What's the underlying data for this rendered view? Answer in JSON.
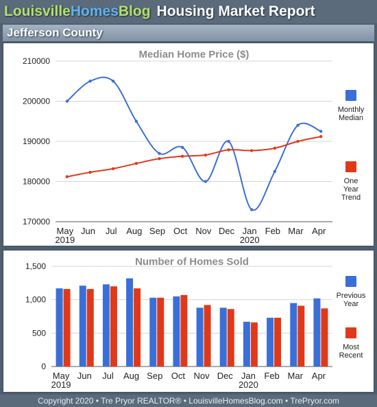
{
  "header": {
    "brand_part1": "Louisville",
    "brand_part2": "Homes",
    "brand_part3": "Blog",
    "title": "Housing Market Report"
  },
  "region": "Jefferson County",
  "colors": {
    "blue": "#3a6fd8",
    "red": "#e0391a"
  },
  "chart_data": [
    {
      "type": "line",
      "title": "Median Home Price ($)",
      "categories": [
        "May",
        "Jun",
        "Jul",
        "Aug",
        "Sep",
        "Oct",
        "Nov",
        "Dec",
        "Jan",
        "Feb",
        "Mar",
        "Apr"
      ],
      "year_labels": [
        "2019",
        "",
        "",
        "",
        "",
        "",
        "",
        "",
        "2020",
        "",
        "",
        ""
      ],
      "yticks": [
        "170000",
        "180000",
        "190000",
        "200000",
        "210000"
      ],
      "ylim": [
        170000,
        210000
      ],
      "grid": true,
      "legend_position": "right",
      "series": [
        {
          "name": "Monthly Median",
          "legend_lines": [
            "Monthly",
            "Median"
          ],
          "color": "#3a6fd8",
          "values": [
            200000,
            205000,
            205000,
            195000,
            187000,
            188500,
            180000,
            190000,
            173000,
            182500,
            194000,
            192500
          ]
        },
        {
          "name": "One Year Trend",
          "legend_lines": [
            "One",
            "Year",
            "Trend"
          ],
          "color": "#e0391a",
          "values": [
            181200,
            182300,
            183200,
            184500,
            185700,
            186300,
            186600,
            187900,
            187700,
            188300,
            190000,
            191200
          ]
        }
      ]
    },
    {
      "type": "bar",
      "title": "Number of Homes Sold",
      "categories": [
        "May",
        "Jun",
        "Jul",
        "Aug",
        "Sep",
        "Oct",
        "Nov",
        "Dec",
        "Jan",
        "Feb",
        "Mar",
        "Apr"
      ],
      "year_labels": [
        "2019",
        "",
        "",
        "",
        "",
        "",
        "",
        "",
        "2020",
        "",
        "",
        ""
      ],
      "yticks": [
        "0",
        "500",
        "1,000",
        "1,500"
      ],
      "ylim": [
        0,
        1500
      ],
      "grid": true,
      "legend_position": "right",
      "series": [
        {
          "name": "Previous Year",
          "legend_lines": [
            "Previous",
            "Year"
          ],
          "color": "#3a6fd8",
          "values": [
            1170,
            1210,
            1230,
            1320,
            1030,
            1050,
            880,
            880,
            670,
            730,
            950,
            1020
          ]
        },
        {
          "name": "Most Recent",
          "legend_lines": [
            "Most",
            "Recent"
          ],
          "color": "#e0391a",
          "values": [
            1160,
            1160,
            1200,
            1170,
            1030,
            1070,
            920,
            860,
            660,
            730,
            910,
            870
          ]
        }
      ]
    }
  ],
  "footer": "Copyright 2020 • Tre Pryor REALTOR® • LouisvilleHomesBlog.com • TrePryor.com"
}
